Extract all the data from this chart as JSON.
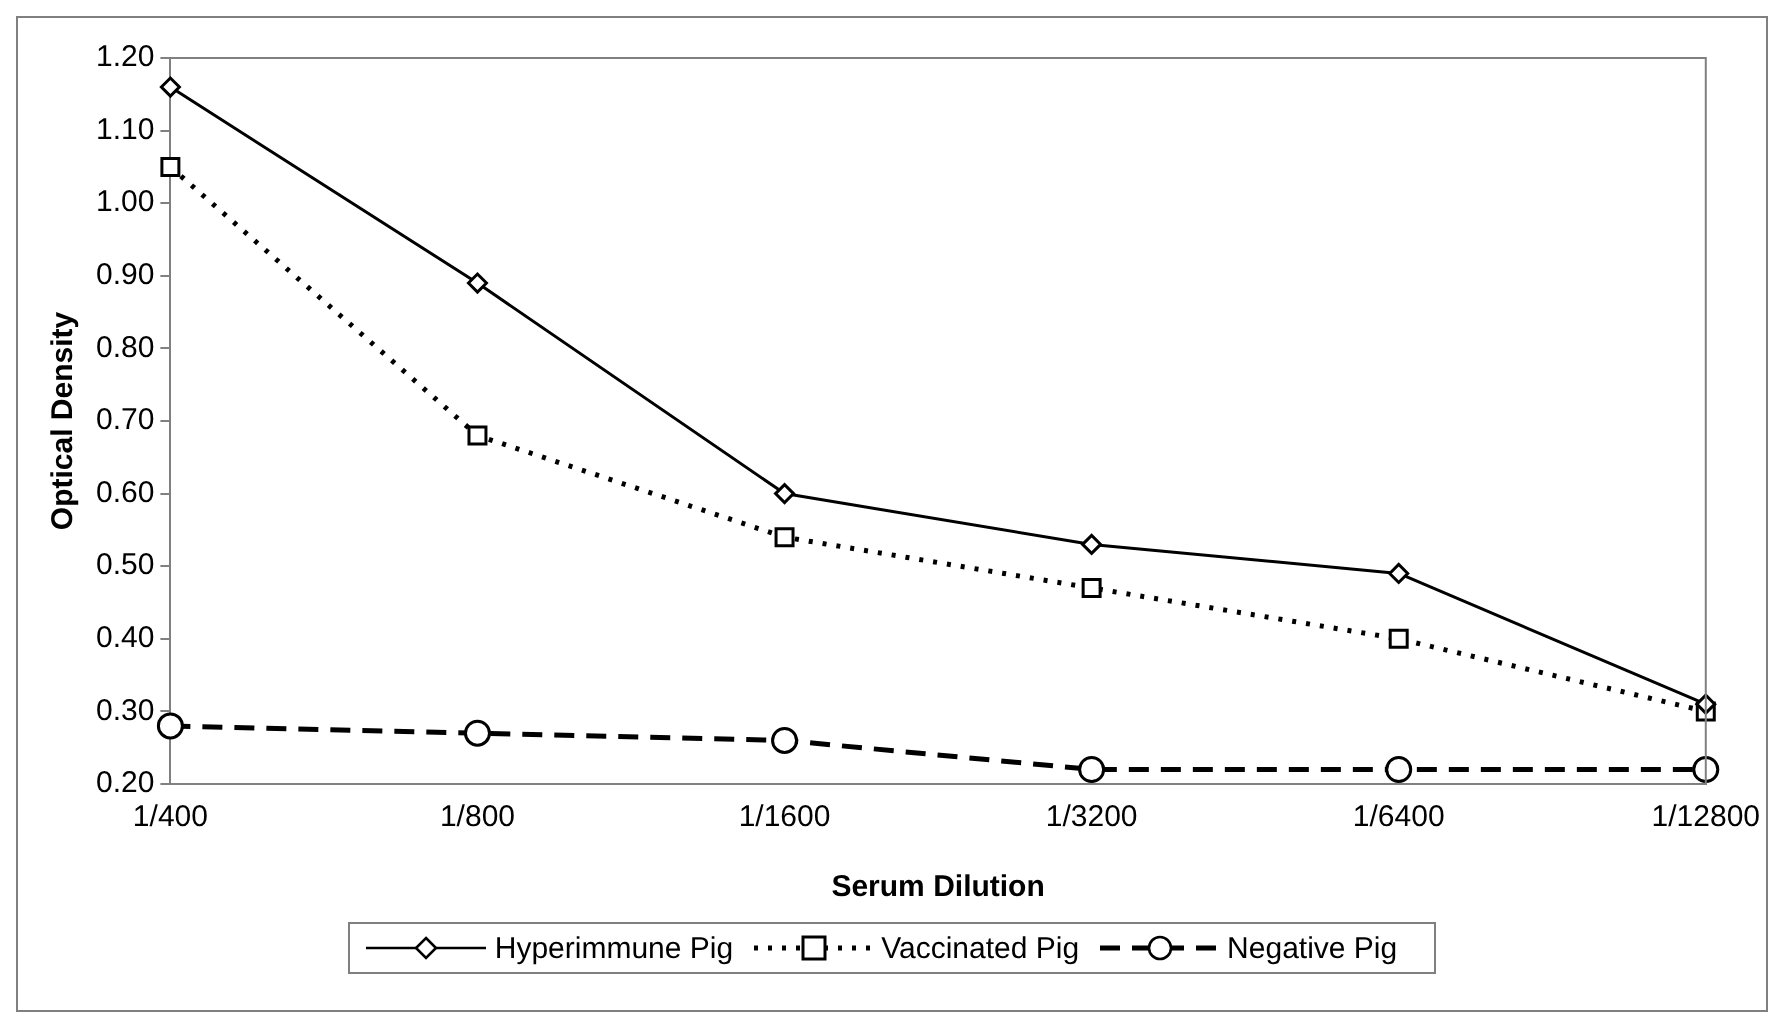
{
  "chart_data": {
    "type": "line",
    "xlabel": "Serum Dilution",
    "ylabel": "Optical Density",
    "categories": [
      "1/400",
      "1/800",
      "1/1600",
      "1/3200",
      "1/6400",
      "1/12800"
    ],
    "series": [
      {
        "name": "Hyperimmune Pig",
        "color": "#000000",
        "marker": "diamond",
        "line_style": "solid",
        "values": [
          1.16,
          0.89,
          0.6,
          0.53,
          0.49,
          0.31
        ]
      },
      {
        "name": "Vaccinated Pig",
        "color": "#000000",
        "marker": "square",
        "line_style": "dotted",
        "values": [
          1.05,
          0.68,
          0.54,
          0.47,
          0.4,
          0.3
        ]
      },
      {
        "name": "Negative Pig",
        "color": "#000000",
        "marker": "circle",
        "line_style": "dashed",
        "values": [
          0.28,
          0.27,
          0.26,
          0.22,
          0.22,
          0.22
        ]
      }
    ],
    "ylim": [
      0.2,
      1.2
    ],
    "yticks": [
      {
        "value": 0.2,
        "label": "0.20"
      },
      {
        "value": 0.3,
        "label": "0.30"
      },
      {
        "value": 0.4,
        "label": "0.40"
      },
      {
        "value": 0.5,
        "label": "0.50"
      },
      {
        "value": 0.6,
        "label": "0.60"
      },
      {
        "value": 0.7,
        "label": "0.70"
      },
      {
        "value": 0.8,
        "label": "0.80"
      },
      {
        "value": 0.9,
        "label": "0.90"
      },
      {
        "value": 1.0,
        "label": "1.00"
      },
      {
        "value": 1.1,
        "label": "1.10"
      },
      {
        "value": 1.2,
        "label": "1.20"
      }
    ],
    "grid": false,
    "legend": "bottom"
  }
}
